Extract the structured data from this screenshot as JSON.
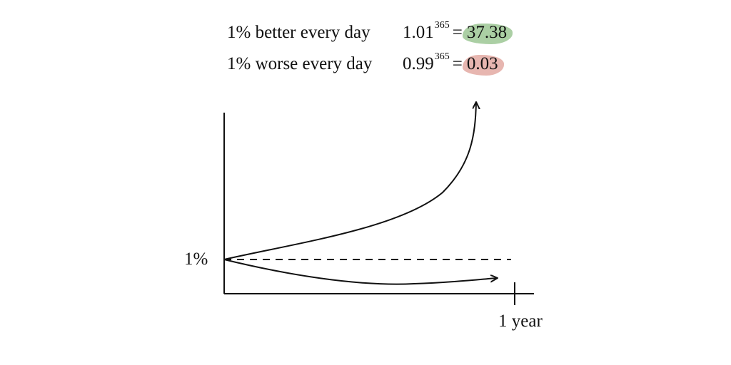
{
  "header": {
    "better_text": "1% better every day",
    "better_base": "1.01",
    "better_exp": "365",
    "better_equals": "=",
    "better_result": "37.38",
    "worse_text": "1% worse every day",
    "worse_base": "0.99",
    "worse_exp": "365",
    "worse_equals": "=",
    "worse_result": "0.03"
  },
  "diagram": {
    "y_tick_label": "1%",
    "x_tick_label": "1 year"
  },
  "colors": {
    "highlight_green": "#8fbf86",
    "highlight_red": "#df9d95",
    "ink": "#111111"
  }
}
